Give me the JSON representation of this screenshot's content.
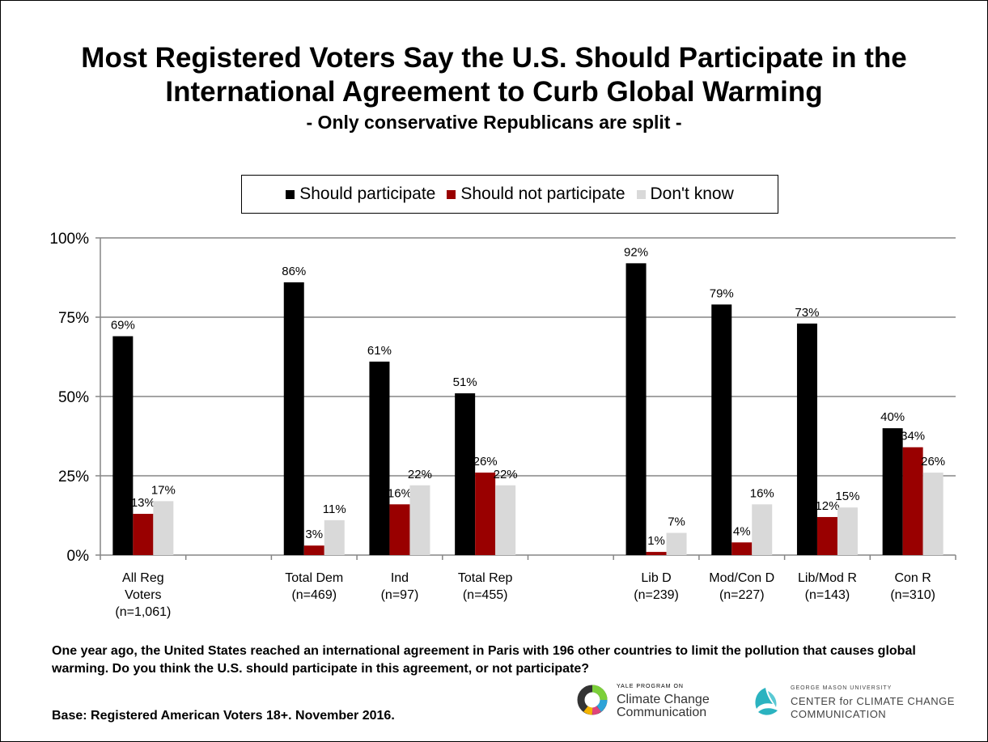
{
  "title_line1": "Most Registered Voters Say the U.S. Should Participate in the",
  "title_line2": "International Agreement to Curb Global Warming",
  "subtitle": "- Only conservative Republicans are split -",
  "question": "One year ago, the United States reached an international agreement in Paris with 196 other countries to limit the pollution that causes global warming. Do you think the U.S. should participate in this agreement, or not participate?",
  "base": "Base: Registered American Voters 18+. November 2016.",
  "logos": {
    "yale_small": "YALE PROGRAM ON",
    "yale_line1": "Climate Change",
    "yale_line2": "Communication",
    "gmu_small": "GEORGE MASON UNIVERSITY",
    "gmu_line1": "CENTER for CLIMATE CHANGE",
    "gmu_line2": "COMMUNICATION"
  },
  "chart_data": {
    "type": "bar",
    "categories": [
      [
        "All Reg",
        "Voters",
        "(n=1,061)"
      ],
      [],
      [
        "Total Dem",
        "(n=469)"
      ],
      [
        "Ind",
        "(n=97)"
      ],
      [
        "Total Rep",
        "(n=455)"
      ],
      [],
      [
        "Lib D",
        "(n=239)"
      ],
      [
        "Mod/Con D",
        "(n=227)"
      ],
      [
        "Lib/Mod R",
        "(n=143)"
      ],
      [
        "Con R",
        "(n=310)"
      ]
    ],
    "series": [
      {
        "name": "Should participate",
        "color": "#000000",
        "values": [
          69,
          null,
          86,
          61,
          51,
          null,
          92,
          79,
          73,
          40
        ],
        "labels": [
          "69%",
          "",
          "86%",
          "61%",
          "51%",
          "",
          "92%",
          "79%",
          "73%",
          "40%"
        ]
      },
      {
        "name": "Should not participate",
        "color": "#990000",
        "values": [
          13,
          null,
          3,
          16,
          26,
          null,
          1,
          4,
          12,
          34
        ],
        "labels": [
          "13%",
          "",
          "3%",
          "16%",
          "26%",
          "",
          "1%",
          "4%",
          "12%",
          "34%"
        ]
      },
      {
        "name": "Don't know",
        "color": "#d9d9d9",
        "values": [
          17,
          null,
          11,
          22,
          22,
          null,
          7,
          16,
          15,
          26
        ],
        "labels": [
          "17%",
          "",
          "11%",
          "22%",
          "22%",
          "",
          "7%",
          "16%",
          "15%",
          "26%"
        ]
      }
    ],
    "yticks": [
      "0%",
      "25%",
      "50%",
      "75%",
      "100%"
    ],
    "ylim": [
      0,
      100
    ],
    "grid": true,
    "legend": "top"
  }
}
